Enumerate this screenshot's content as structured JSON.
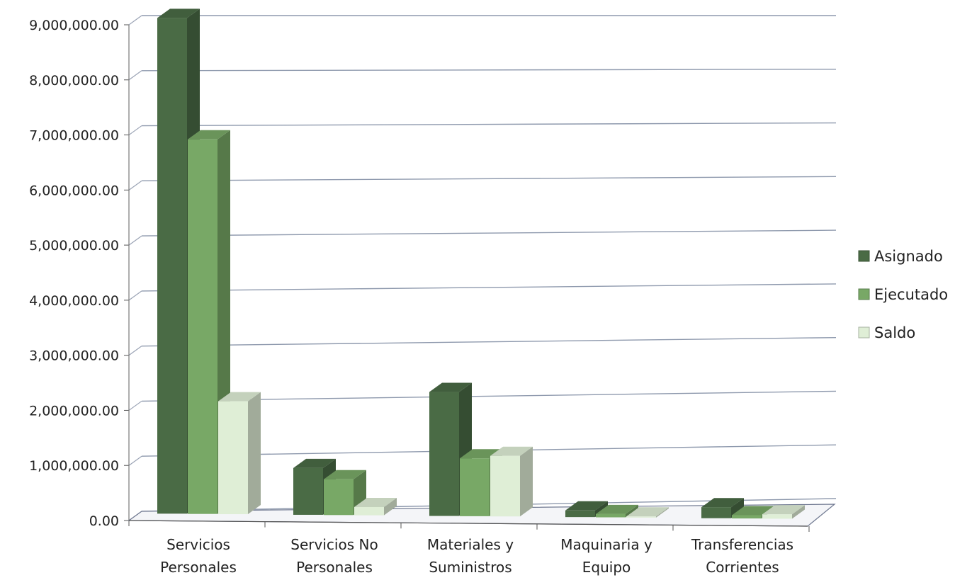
{
  "chart_data": {
    "type": "bar",
    "title": "",
    "xlabel": "",
    "ylabel": "",
    "categories": [
      [
        "Servicios",
        "Personales"
      ],
      [
        "Servicios No",
        "Personales"
      ],
      [
        "Materiales y",
        "Suministros"
      ],
      [
        "Maquinaria y",
        "Equipo"
      ],
      [
        "Transferencias",
        "Corrientes"
      ]
    ],
    "series": [
      {
        "name": "Asignado",
        "color": "#4a6b45",
        "values": [
          9000000,
          850000,
          2250000,
          120000,
          200000
        ]
      },
      {
        "name": "Ejecutado",
        "color": "#78a866",
        "values": [
          6800000,
          650000,
          1050000,
          60000,
          60000
        ]
      },
      {
        "name": "Saldo",
        "color": "#dfeed6",
        "values": [
          2050000,
          150000,
          1100000,
          20000,
          80000
        ]
      }
    ],
    "ylim": [
      0,
      9000000
    ],
    "yticks": [
      "0.00",
      "1,000,000.00",
      "2,000,000.00",
      "3,000,000.00",
      "4,000,000.00",
      "5,000,000.00",
      "6,000,000.00",
      "7,000,000.00",
      "8,000,000.00",
      "9,000,000.00"
    ],
    "grid": true,
    "legend_position": "right",
    "style": "3d-clustered-column"
  }
}
